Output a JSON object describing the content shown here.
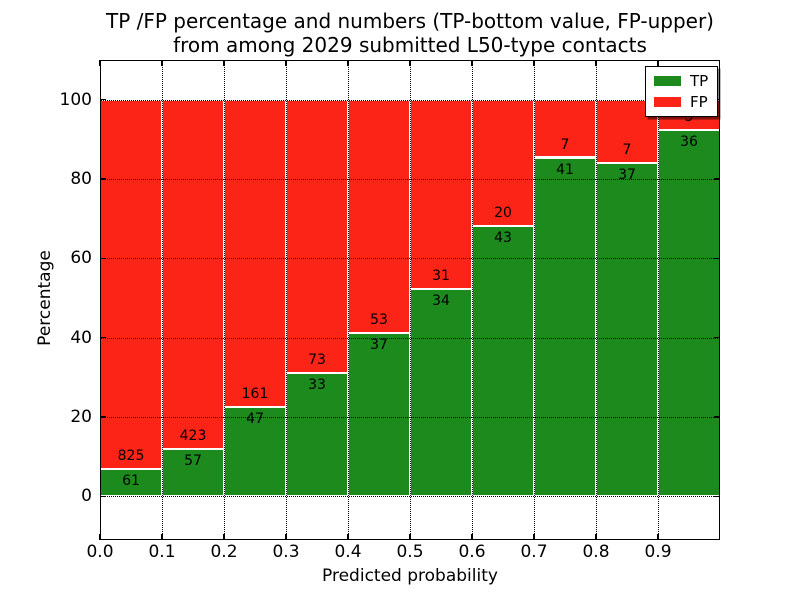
{
  "figure": {
    "title_line1": "TP /FP percentage and numbers (TP-bottom value, FP-upper)",
    "title_line2": "from among 2029 submitted L50-type contacts"
  },
  "axes": {
    "xlabel": "Predicted probability",
    "ylabel": "Percentage",
    "x_tick_labels": [
      "0.0",
      "0.1",
      "0.2",
      "0.3",
      "0.4",
      "0.5",
      "0.6",
      "0.7",
      "0.8",
      "0.9"
    ],
    "y_tick_labels": [
      "0",
      "20",
      "40",
      "60",
      "80",
      "100"
    ]
  },
  "legend": {
    "tp_label": "TP",
    "fp_label": "FP"
  },
  "chart_data": {
    "type": "bar",
    "stacked": true,
    "title": "TP /FP percentage and numbers (TP-bottom value, FP-upper) from among 2029 submitted L50-type contacts",
    "xlabel": "Predicted probability",
    "ylabel": "Percentage",
    "total_submitted_contacts": 2029,
    "xlim": [
      0.0,
      1.0
    ],
    "ylim": [
      -11,
      110
    ],
    "bin_width": 0.1,
    "categories": [
      "0.0-0.1",
      "0.1-0.2",
      "0.2-0.3",
      "0.3-0.4",
      "0.4-0.5",
      "0.5-0.6",
      "0.6-0.7",
      "0.7-0.8",
      "0.8-0.9",
      "0.9-1.0"
    ],
    "x_ticks": [
      0.0,
      0.1,
      0.2,
      0.3,
      0.4,
      0.5,
      0.6,
      0.7,
      0.8,
      0.9
    ],
    "y_ticks": [
      0,
      20,
      40,
      60,
      80,
      100
    ],
    "grid": true,
    "grid_style": "dotted",
    "legend_position": "upper right",
    "bar_edge_color": "#ffffff",
    "series": [
      {
        "name": "TP",
        "color": "#1d8a1d",
        "counts": [
          61,
          57,
          47,
          33,
          37,
          34,
          43,
          41,
          37,
          36
        ],
        "percent": [
          6.88,
          11.88,
          22.6,
          31.13,
          41.11,
          52.31,
          68.25,
          85.42,
          84.09,
          92.31
        ]
      },
      {
        "name": "FP",
        "color": "#fc2317",
        "counts": [
          825,
          423,
          161,
          73,
          53,
          31,
          20,
          7,
          7,
          3
        ],
        "percent": [
          93.12,
          88.12,
          77.4,
          68.87,
          58.89,
          47.69,
          31.75,
          14.58,
          15.91,
          7.69
        ]
      }
    ]
  }
}
